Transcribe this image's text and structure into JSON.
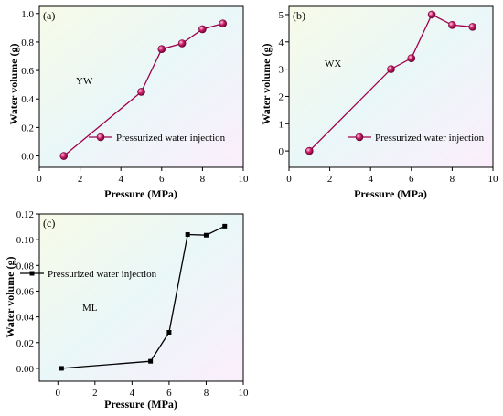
{
  "chart_data": [
    {
      "type": "line",
      "panel_label": "(a)",
      "annotation": "YW",
      "xlabel": "Pressure (MPa)",
      "ylabel": "Water volume (g)",
      "xlim": [
        0,
        10
      ],
      "ylim": [
        -0.08,
        1.05
      ],
      "xticks": [
        0,
        2,
        4,
        6,
        8,
        10
      ],
      "yticks": [
        0.0,
        0.2,
        0.4,
        0.6,
        0.8,
        1.0
      ],
      "ytick_decimals": 1,
      "marker": "circle",
      "color": "#a0004a",
      "legend_position": "lower-right",
      "series": [
        {
          "name": "Pressurized water injection",
          "x": [
            1.2,
            5.0,
            6.0,
            7.0,
            8.0,
            9.0
          ],
          "y": [
            0.0,
            0.45,
            0.75,
            0.79,
            0.89,
            0.93
          ]
        }
      ]
    },
    {
      "type": "line",
      "panel_label": "(b)",
      "annotation": "WX",
      "xlabel": "Pressure (MPa)",
      "ylabel": "Water volume (g)",
      "xlim": [
        0,
        10
      ],
      "ylim": [
        -0.6,
        5.3
      ],
      "xticks": [
        0,
        2,
        4,
        6,
        8,
        10
      ],
      "yticks": [
        0,
        1,
        2,
        3,
        4,
        5
      ],
      "ytick_decimals": 0,
      "marker": "circle",
      "color": "#a0004a",
      "legend_position": "lower-right",
      "series": [
        {
          "name": "Pressurized water injection",
          "x": [
            1.0,
            5.0,
            6.0,
            7.0,
            8.0,
            9.0
          ],
          "y": [
            0.0,
            3.0,
            3.4,
            5.0,
            4.62,
            4.55
          ]
        }
      ]
    },
    {
      "type": "line",
      "panel_label": "(c)",
      "annotation": "ML",
      "xlabel": "Pressure (MPa)",
      "ylabel": "Water volume (g)",
      "xlim": [
        -1,
        10
      ],
      "ylim": [
        -0.01,
        0.12
      ],
      "xticks": [
        0,
        2,
        4,
        6,
        8,
        10
      ],
      "yticks": [
        0.0,
        0.02,
        0.04,
        0.06,
        0.08,
        0.1,
        0.12
      ],
      "ytick_decimals": 2,
      "marker": "square",
      "color": "#000000",
      "legend_position": "upper-left",
      "series": [
        {
          "name": "Pressurized water injection",
          "x": [
            0.2,
            5.0,
            6.0,
            7.0,
            8.0,
            9.0
          ],
          "y": [
            0.0,
            0.0055,
            0.028,
            0.104,
            0.1035,
            0.1105
          ]
        }
      ]
    }
  ]
}
